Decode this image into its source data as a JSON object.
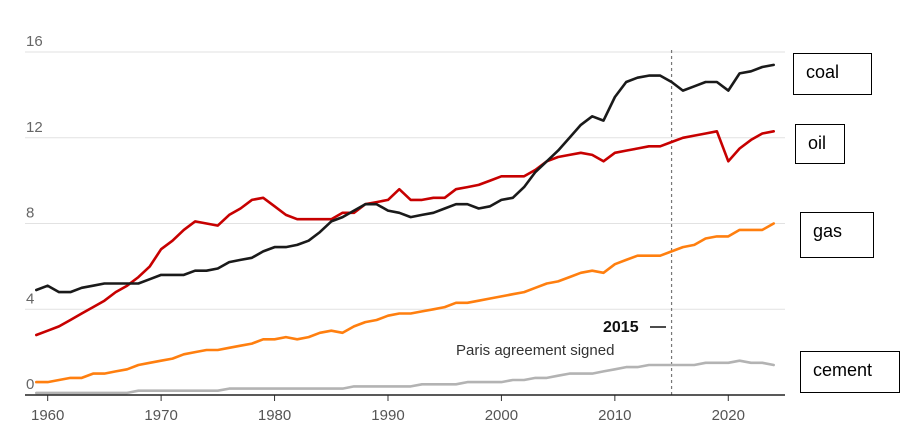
{
  "chart_data": {
    "type": "line",
    "title": "",
    "xlabel": "",
    "ylabel": "",
    "xlim": [
      1958,
      2025
    ],
    "ylim": [
      0,
      16
    ],
    "yticks": [
      0,
      4,
      8,
      12,
      16
    ],
    "xticks": [
      1960,
      1970,
      1980,
      1990,
      2000,
      2010,
      2020
    ],
    "grid": true,
    "x": [
      1959,
      1960,
      1961,
      1962,
      1963,
      1964,
      1965,
      1966,
      1967,
      1968,
      1969,
      1970,
      1971,
      1972,
      1973,
      1974,
      1975,
      1976,
      1977,
      1978,
      1979,
      1980,
      1981,
      1982,
      1983,
      1984,
      1985,
      1986,
      1987,
      1988,
      1989,
      1990,
      1991,
      1992,
      1993,
      1994,
      1995,
      1996,
      1997,
      1998,
      1999,
      2000,
      2001,
      2002,
      2003,
      2004,
      2005,
      2006,
      2007,
      2008,
      2009,
      2010,
      2011,
      2012,
      2013,
      2014,
      2015,
      2016,
      2017,
      2018,
      2019,
      2020,
      2021,
      2022,
      2023,
      2024
    ],
    "series": [
      {
        "name": "coal",
        "color": "#1a1a1a",
        "values": [
          4.9,
          5.1,
          4.8,
          4.8,
          5.0,
          5.1,
          5.2,
          5.2,
          5.2,
          5.2,
          5.4,
          5.6,
          5.6,
          5.6,
          5.8,
          5.8,
          5.9,
          6.2,
          6.3,
          6.4,
          6.7,
          6.9,
          6.9,
          7.0,
          7.2,
          7.6,
          8.1,
          8.3,
          8.6,
          8.9,
          8.9,
          8.6,
          8.5,
          8.3,
          8.4,
          8.5,
          8.7,
          8.9,
          8.9,
          8.7,
          8.8,
          9.1,
          9.2,
          9.7,
          10.4,
          10.9,
          11.4,
          12.0,
          12.6,
          13.0,
          12.8,
          13.9,
          14.6,
          14.8,
          14.9,
          14.9,
          14.6,
          14.2,
          14.4,
          14.6,
          14.6,
          14.2,
          15.0,
          15.1,
          15.3,
          15.4
        ]
      },
      {
        "name": "oil",
        "color": "#c70000",
        "values": [
          2.8,
          3.0,
          3.2,
          3.5,
          3.8,
          4.1,
          4.4,
          4.8,
          5.1,
          5.5,
          6.0,
          6.8,
          7.2,
          7.7,
          8.1,
          8.0,
          7.9,
          8.4,
          8.7,
          9.1,
          9.2,
          8.8,
          8.4,
          8.2,
          8.2,
          8.2,
          8.2,
          8.5,
          8.5,
          8.9,
          9.0,
          9.1,
          9.6,
          9.1,
          9.1,
          9.2,
          9.2,
          9.6,
          9.7,
          9.8,
          10.0,
          10.2,
          10.2,
          10.2,
          10.5,
          10.9,
          11.1,
          11.2,
          11.3,
          11.2,
          10.9,
          11.3,
          11.4,
          11.5,
          11.6,
          11.6,
          11.8,
          12.0,
          12.1,
          12.2,
          12.3,
          10.9,
          11.5,
          11.9,
          12.2,
          12.3
        ]
      },
      {
        "name": "gas",
        "color": "#ff7f0f",
        "values": [
          0.6,
          0.6,
          0.7,
          0.8,
          0.8,
          1.0,
          1.0,
          1.1,
          1.2,
          1.4,
          1.5,
          1.6,
          1.7,
          1.9,
          2.0,
          2.1,
          2.1,
          2.2,
          2.3,
          2.4,
          2.6,
          2.6,
          2.7,
          2.6,
          2.7,
          2.9,
          3.0,
          2.9,
          3.2,
          3.4,
          3.5,
          3.7,
          3.8,
          3.8,
          3.9,
          4.0,
          4.1,
          4.3,
          4.3,
          4.4,
          4.5,
          4.6,
          4.7,
          4.8,
          5.0,
          5.2,
          5.3,
          5.5,
          5.7,
          5.8,
          5.7,
          6.1,
          6.3,
          6.5,
          6.5,
          6.5,
          6.7,
          6.9,
          7.0,
          7.3,
          7.4,
          7.4,
          7.7,
          7.7,
          7.7,
          8.0
        ]
      },
      {
        "name": "cement",
        "color": "#b3b3b3",
        "values": [
          0.1,
          0.1,
          0.1,
          0.1,
          0.1,
          0.1,
          0.1,
          0.1,
          0.1,
          0.2,
          0.2,
          0.2,
          0.2,
          0.2,
          0.2,
          0.2,
          0.2,
          0.3,
          0.3,
          0.3,
          0.3,
          0.3,
          0.3,
          0.3,
          0.3,
          0.3,
          0.3,
          0.3,
          0.4,
          0.4,
          0.4,
          0.4,
          0.4,
          0.4,
          0.5,
          0.5,
          0.5,
          0.5,
          0.6,
          0.6,
          0.6,
          0.6,
          0.7,
          0.7,
          0.8,
          0.8,
          0.9,
          1.0,
          1.0,
          1.0,
          1.1,
          1.2,
          1.3,
          1.3,
          1.4,
          1.4,
          1.4,
          1.4,
          1.4,
          1.5,
          1.5,
          1.5,
          1.6,
          1.5,
          1.5,
          1.4
        ]
      }
    ],
    "annotation": {
      "x": 2015,
      "year_label": "2015",
      "text": "Paris agreement signed"
    }
  },
  "legend": {
    "coal": "coal",
    "oil": "oil",
    "gas": "gas",
    "cement": "cement"
  }
}
